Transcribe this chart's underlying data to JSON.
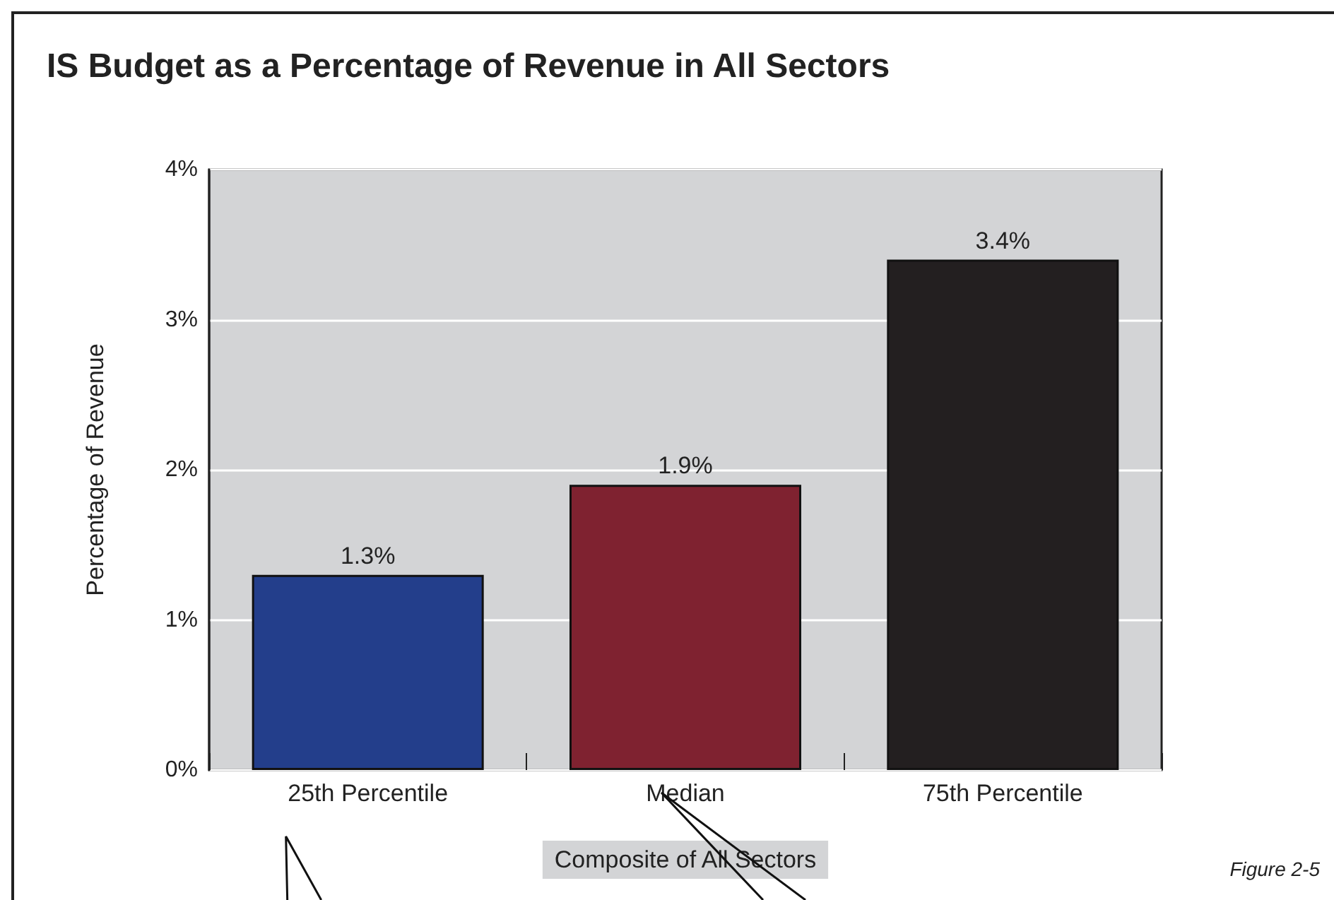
{
  "chart_data": {
    "type": "bar",
    "title": "IS Budget as a Percentage of Revenue in All Sectors",
    "xlabel": "Composite of All Sectors",
    "ylabel": "Percentage of Revenue",
    "categories": [
      "25th Percentile",
      "Median",
      "75th Percentile"
    ],
    "values": [
      1.3,
      1.9,
      3.4
    ],
    "colors": [
      "#233e8b",
      "#7f2230",
      "#231f20"
    ],
    "value_labels": [
      "1.3%",
      "1.9%",
      "3.4%"
    ],
    "ylim": [
      0,
      4
    ],
    "yticks": [
      {
        "value": 0,
        "label": "0%"
      },
      {
        "value": 1,
        "label": "1%"
      },
      {
        "value": 2,
        "label": "2%"
      },
      {
        "value": 3,
        "label": "3%"
      },
      {
        "value": 4,
        "label": "4%"
      }
    ],
    "grid": "y",
    "annotations": [
      "Figure 2-5"
    ]
  }
}
